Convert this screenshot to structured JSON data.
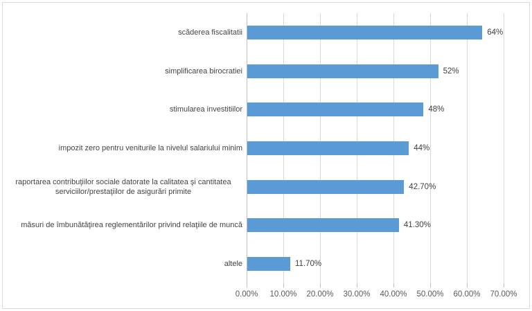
{
  "chart_data": {
    "type": "bar",
    "orientation": "horizontal",
    "title": "",
    "xlabel": "",
    "ylabel": "",
    "legend": "none",
    "grid": "vertical",
    "xlim": [
      0,
      70
    ],
    "categories": [
      "scăderea fiscalitatii",
      "simplificarea birocratiei",
      "stimularea investitiilor",
      "impozit zero pentru veniturile la nivelul salariului minim",
      "raportarea contribuţiilor sociale datorate la calitatea şi cantitatea serviciilor/prestaţiilor de asigurări primite",
      "măsuri de îmbunătăţirea reglementărilor privind relaţiile de muncă",
      "altele"
    ],
    "values": [
      64,
      52,
      48,
      44,
      42.7,
      41.3,
      11.7
    ],
    "value_labels": [
      "64%",
      "52%",
      "48%",
      "44%",
      "42.70%",
      "41.30%",
      "11.70%"
    ],
    "x_tick_values": [
      0,
      10,
      20,
      30,
      40,
      50,
      60,
      70
    ],
    "x_ticks": [
      "0.00%",
      "10.00%",
      "20.00%",
      "30.00%",
      "40.00%",
      "50.00%",
      "60.00%",
      "70.00%"
    ]
  },
  "colors": {
    "bar": "#5b9bd5",
    "gridline": "#d9d9d9",
    "axis_line": "#bfbfbf",
    "tick_mark": "#bfbfbf",
    "tick_label": "#595959",
    "category_label": "#444444",
    "data_label": "#404040",
    "background": "#ffffff",
    "chart_border": "#d9d9d9"
  }
}
